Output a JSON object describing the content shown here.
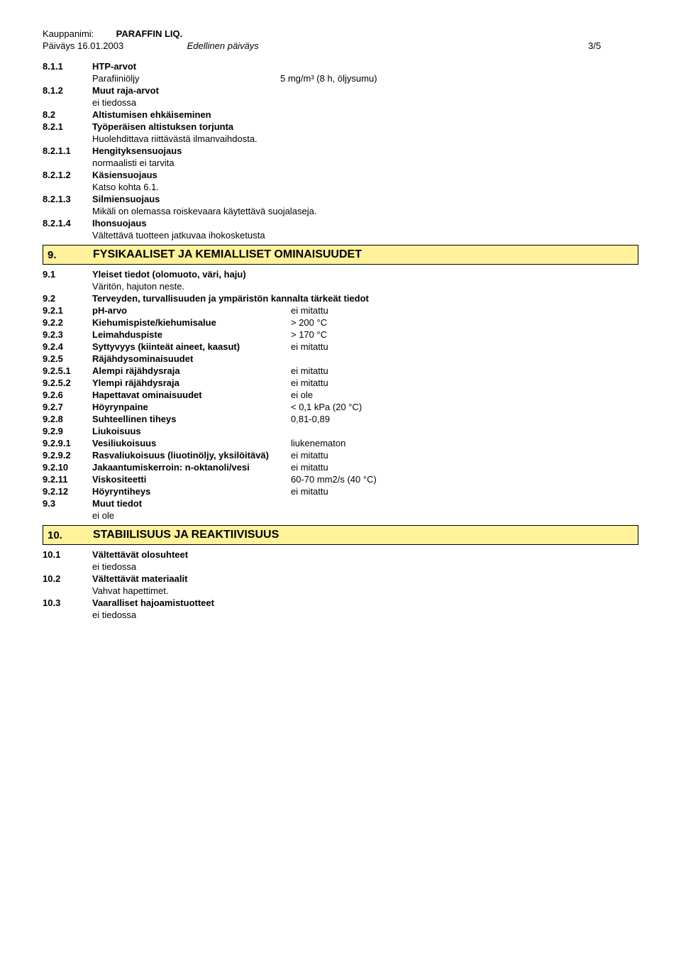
{
  "header": {
    "trade_name_label": "Kauppanimi:",
    "trade_name": "PARAFFIN  LIQ.",
    "date_label": "Päiväys",
    "date": "16.01.2003",
    "prev_label": "Edellinen päiväys",
    "page": "3/5"
  },
  "items": [
    {
      "num": "8.1.1",
      "lbl": "HTP-arvot",
      "bold": true
    },
    {
      "indent_pair": [
        "Parafiiniöljy",
        "5 mg/m³ (8 h, öljysumu)"
      ]
    },
    {
      "num": "8.1.2",
      "lbl": "Muut raja-arvot",
      "bold": true
    },
    {
      "indent": "ei tiedossa"
    },
    {
      "num": "8.2",
      "lbl": "Altistumisen ehkäiseminen",
      "bold": true
    },
    {
      "num": "8.2.1",
      "lbl": "Työperäisen altistuksen torjunta",
      "bold": true
    },
    {
      "indent": "Huolehdittava riittävästä ilmanvaihdosta."
    },
    {
      "num": "8.2.1.1",
      "lbl": "Hengityksensuojaus",
      "bold": true
    },
    {
      "indent": "normaalisti ei tarvita"
    },
    {
      "num": "8.2.1.2",
      "lbl": "Käsiensuojaus",
      "bold": true
    },
    {
      "indent": "Katso kohta 6.1."
    },
    {
      "num": "8.2.1.3",
      "lbl": "Silmiensuojaus",
      "bold": true
    },
    {
      "indent": "Mikäli on olemassa roiskevaara käytettävä suojalaseja."
    },
    {
      "num": "8.2.1.4",
      "lbl": "Ihonsuojaus",
      "bold": true
    },
    {
      "indent": "Vältettävä tuotteen jatkuvaa ihokosketusta"
    }
  ],
  "section9": {
    "num": "9.",
    "title": "FYSIKAALISET JA KEMIALLISET OMINAISUUDET"
  },
  "items9a": [
    {
      "num": "9.1",
      "lbl": "Yleiset tiedot (olomuoto, väri, haju)",
      "bold": true
    },
    {
      "indent": "Väritön, hajuton neste."
    },
    {
      "num": "9.2",
      "lbl": "Terveyden, turvallisuuden ja ympäristön kannalta tärkeät tiedot",
      "bold": true
    }
  ],
  "props": [
    {
      "num": "9.2.1",
      "lbl": "pH-arvo",
      "val": "ei mitattu"
    },
    {
      "num": "9.2.2",
      "lbl": "Kiehumispiste/kiehumisalue",
      "val": "> 200 °C"
    },
    {
      "num": "9.2.3",
      "lbl": "Leimahduspiste",
      "val": "> 170 °C"
    },
    {
      "num": "9.2.4",
      "lbl": "Syttyvyys (kiinteät aineet, kaasut)",
      "val": "ei mitattu"
    },
    {
      "num": "9.2.5",
      "lbl": "Räjähdysominaisuudet",
      "val": ""
    },
    {
      "num": "9.2.5.1",
      "lbl": "Alempi räjähdysraja",
      "val": "ei mitattu"
    },
    {
      "num": "9.2.5.2",
      "lbl": "Ylempi räjähdysraja",
      "val": "ei mitattu"
    },
    {
      "num": "9.2.6",
      "lbl": "Hapettavat ominaisuudet",
      "val": "ei ole"
    },
    {
      "num": "9.2.7",
      "lbl": "Höyrynpaine",
      "val": "< 0,1 kPa  (20 °C)"
    },
    {
      "num": "9.2.8",
      "lbl": "Suhteellinen tiheys",
      "val": "0,81-0,89"
    },
    {
      "num": "9.2.9",
      "lbl": "Liukoisuus",
      "val": ""
    },
    {
      "num": "9.2.9.1",
      "lbl": "Vesiliukoisuus",
      "val": "liukenematon"
    },
    {
      "num": "9.2.9.2",
      "lbl": "Rasvaliukoisuus (liuotinöljy, yksilöitävä)",
      "val": "ei mitattu"
    },
    {
      "num": "9.2.10",
      "lbl": "Jakaantumiskerroin: n-oktanoli/vesi",
      "val": "ei mitattu"
    },
    {
      "num": "9.2.11",
      "lbl": "Viskositeetti",
      "val": "60-70 mm2/s  (40 °C)"
    },
    {
      "num": "9.2.12",
      "lbl": "Höyryntiheys",
      "val": "ei mitattu"
    }
  ],
  "items9b": [
    {
      "num": "9.3",
      "lbl": "Muut tiedot",
      "bold": true
    },
    {
      "indent": "ei ole"
    }
  ],
  "section10": {
    "num": "10.",
    "title": "STABIILISUUS JA REAKTIIVISUUS"
  },
  "items10": [
    {
      "num": "10.1",
      "lbl": "Vältettävät olosuhteet",
      "bold": true
    },
    {
      "indent": "ei tiedossa"
    },
    {
      "num": "10.2",
      "lbl": "Vältettävät materiaalit",
      "bold": true
    },
    {
      "indent": "Vahvat hapettimet."
    },
    {
      "num": "10.3",
      "lbl": "Vaaralliset hajoamistuotteet",
      "bold": true
    },
    {
      "indent": "ei tiedossa"
    }
  ]
}
